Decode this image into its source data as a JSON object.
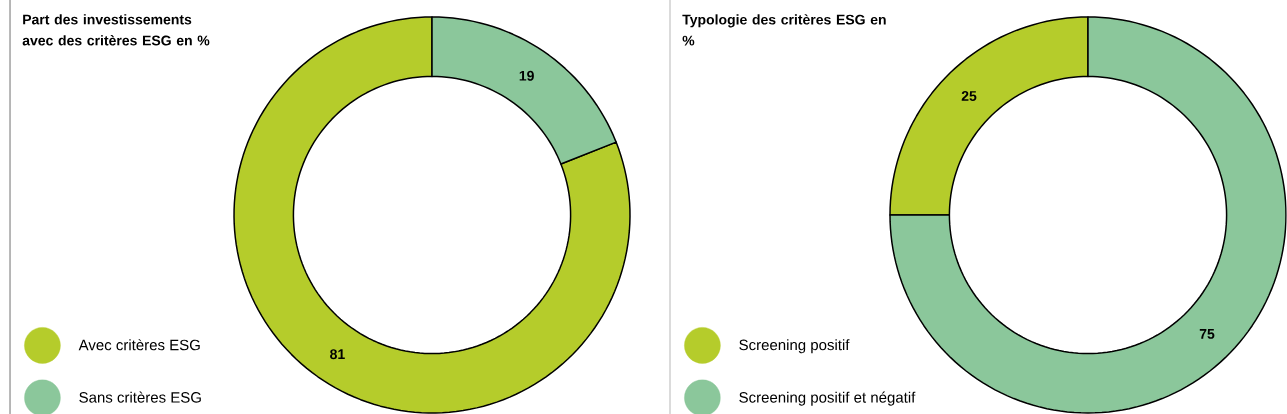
{
  "chart_data": [
    {
      "type": "donut",
      "title": "Part des investissements avec des critères ESG en %",
      "categories": [
        "Avec critères ESG",
        "Sans critères ESG"
      ],
      "values": [
        81,
        19
      ],
      "colors": [
        "#b5cc2b",
        "#8bc79b"
      ],
      "data_labels": true,
      "legend": "bottom left"
    },
    {
      "type": "donut",
      "title": "Typologie des critères ESG en %",
      "categories": [
        "Screening positif",
        "Screening positif et négatif"
      ],
      "values": [
        25,
        75
      ],
      "colors": [
        "#b5cc2b",
        "#8bc79b"
      ],
      "data_labels": true,
      "legend": "bottom left"
    }
  ]
}
